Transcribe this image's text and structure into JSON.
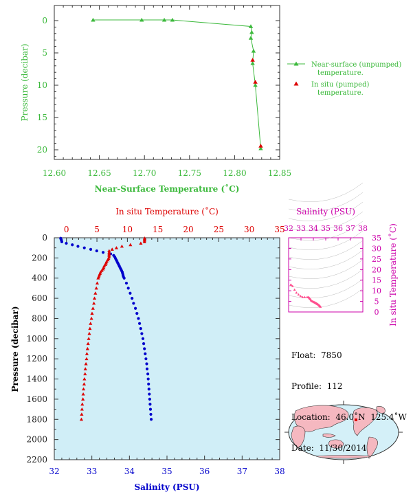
{
  "colors": {
    "green": "#3cb93c",
    "red": "#dd0000",
    "blue": "#0000cc",
    "magenta": "#cc00aa",
    "pink": "#ff4f8f",
    "panel_bg": "#d0eef7",
    "axis_text": "#444444"
  },
  "chart_data": [
    {
      "type": "line",
      "xlabel": "Near-Surface Temperature (˚C)",
      "ylabel": "Pressure (decibar)",
      "xlim": [
        12.6,
        12.85
      ],
      "ylim": [
        0,
        22
      ],
      "y_reversed": true,
      "x_ticks": [
        "12.60",
        "12.65",
        "12.70",
        "12.75",
        "12.80",
        "12.85"
      ],
      "y_ticks": [
        "0",
        "5",
        "10",
        "15",
        "20"
      ],
      "legend_position": "right",
      "series": [
        {
          "name": "Near-surface (unpumped) temperature.",
          "marker": "triangle",
          "points": [
            [
              12.643,
              -0.1
            ],
            [
              12.697,
              -0.1
            ],
            [
              12.722,
              -0.1
            ],
            [
              12.731,
              -0.1
            ],
            [
              12.818,
              0.9
            ],
            [
              12.819,
              1.8
            ],
            [
              12.818,
              2.7
            ],
            [
              12.821,
              4.7
            ],
            [
              12.82,
              6.6
            ],
            [
              12.823,
              10.0
            ],
            [
              12.829,
              19.8
            ]
          ]
        },
        {
          "name": "In situ (pumped) temperature.",
          "marker": "triangle",
          "points": [
            [
              12.82,
              6.1
            ],
            [
              12.823,
              9.5
            ],
            [
              12.829,
              19.4
            ]
          ]
        }
      ]
    },
    {
      "type": "line",
      "top_xlabel": "In situ Temperature (˚C)",
      "bottom_xlabel": "Salinity (PSU)",
      "ylabel": "Pressure (decibar)",
      "temperature_xlim": [
        -2,
        35
      ],
      "salinity_xlim": [
        32,
        38
      ],
      "ylim": [
        0,
        2200
      ],
      "y_reversed": true,
      "temperature_ticks": [
        "0",
        "5",
        "10",
        "15",
        "20",
        "25",
        "30",
        "35"
      ],
      "salinity_ticks": [
        "32",
        "33",
        "34",
        "35",
        "36",
        "37",
        "38"
      ],
      "y_ticks": [
        "0",
        "200",
        "400",
        "600",
        "800",
        "1000",
        "1200",
        "1400",
        "1600",
        "1800",
        "2000",
        "2200"
      ],
      "series": [
        {
          "name": "temperature",
          "marker": "triangle",
          "points": [
            [
              12.83,
              5
            ],
            [
              12.83,
              15
            ],
            [
              12.82,
              25
            ],
            [
              12.81,
              40
            ],
            [
              12.2,
              55
            ],
            [
              10.5,
              70
            ],
            [
              9.1,
              85
            ],
            [
              8.2,
              100
            ],
            [
              7.5,
              115
            ],
            [
              7.0,
              130
            ],
            [
              7.0,
              145
            ],
            [
              7.0,
              160
            ],
            [
              7.0,
              175
            ],
            [
              7.0,
              190
            ],
            [
              6.9,
              205
            ],
            [
              6.8,
              220
            ],
            [
              6.6,
              235
            ],
            [
              6.5,
              250
            ],
            [
              6.4,
              265
            ],
            [
              6.2,
              280
            ],
            [
              6.1,
              295
            ],
            [
              6.0,
              310
            ],
            [
              5.8,
              325
            ],
            [
              5.6,
              340
            ],
            [
              5.5,
              355
            ],
            [
              5.4,
              370
            ],
            [
              5.3,
              385
            ],
            [
              5.2,
              400
            ],
            [
              5.05,
              450
            ],
            [
              4.9,
              500
            ],
            [
              4.75,
              550
            ],
            [
              4.6,
              600
            ],
            [
              4.5,
              650
            ],
            [
              4.35,
              700
            ],
            [
              4.2,
              750
            ],
            [
              4.1,
              800
            ],
            [
              3.95,
              850
            ],
            [
              3.85,
              900
            ],
            [
              3.75,
              950
            ],
            [
              3.65,
              1000
            ],
            [
              3.55,
              1050
            ],
            [
              3.45,
              1100
            ],
            [
              3.35,
              1150
            ],
            [
              3.3,
              1200
            ],
            [
              3.2,
              1250
            ],
            [
              3.1,
              1300
            ],
            [
              3.05,
              1350
            ],
            [
              2.95,
              1400
            ],
            [
              2.9,
              1450
            ],
            [
              2.8,
              1500
            ],
            [
              2.75,
              1550
            ],
            [
              2.7,
              1600
            ],
            [
              2.6,
              1650
            ],
            [
              2.55,
              1700
            ],
            [
              2.5,
              1750
            ],
            [
              2.45,
              1800
            ]
          ]
        },
        {
          "name": "salinity",
          "marker": "circle",
          "points": [
            [
              32.17,
              5
            ],
            [
              32.18,
              15
            ],
            [
              32.19,
              25
            ],
            [
              32.2,
              40
            ],
            [
              32.32,
              55
            ],
            [
              32.48,
              70
            ],
            [
              32.63,
              85
            ],
            [
              32.8,
              100
            ],
            [
              32.97,
              115
            ],
            [
              33.13,
              130
            ],
            [
              33.3,
              145
            ],
            [
              33.5,
              160
            ],
            [
              33.58,
              175
            ],
            [
              33.61,
              190
            ],
            [
              33.63,
              205
            ],
            [
              33.65,
              220
            ],
            [
              33.67,
              235
            ],
            [
              33.69,
              250
            ],
            [
              33.71,
              265
            ],
            [
              33.73,
              280
            ],
            [
              33.75,
              295
            ],
            [
              33.77,
              310
            ],
            [
              33.79,
              325
            ],
            [
              33.81,
              340
            ],
            [
              33.82,
              355
            ],
            [
              33.83,
              370
            ],
            [
              33.84,
              385
            ],
            [
              33.86,
              400
            ],
            [
              33.92,
              450
            ],
            [
              33.97,
              500
            ],
            [
              34.02,
              550
            ],
            [
              34.07,
              600
            ],
            [
              34.11,
              650
            ],
            [
              34.16,
              700
            ],
            [
              34.2,
              750
            ],
            [
              34.24,
              800
            ],
            [
              34.27,
              850
            ],
            [
              34.3,
              900
            ],
            [
              34.33,
              950
            ],
            [
              34.36,
              1000
            ],
            [
              34.38,
              1050
            ],
            [
              34.4,
              1100
            ],
            [
              34.42,
              1150
            ],
            [
              34.44,
              1200
            ],
            [
              34.46,
              1250
            ],
            [
              34.47,
              1300
            ],
            [
              34.49,
              1350
            ],
            [
              34.5,
              1400
            ],
            [
              34.51,
              1450
            ],
            [
              34.52,
              1500
            ],
            [
              34.53,
              1550
            ],
            [
              34.54,
              1600
            ],
            [
              34.55,
              1650
            ],
            [
              34.56,
              1700
            ],
            [
              34.57,
              1750
            ],
            [
              34.58,
              1800
            ]
          ]
        }
      ]
    },
    {
      "type": "scatter",
      "top_xlabel": "Salinity (PSU)",
      "right_ylabel": "In situ Temperature (˚C)",
      "xlim": [
        32,
        38
      ],
      "ylim": [
        0,
        35
      ],
      "x_ticks": [
        "32",
        "33",
        "34",
        "35",
        "36",
        "37",
        "38"
      ],
      "y_ticks": [
        "0",
        "5",
        "10",
        "15",
        "20",
        "25",
        "30",
        "35"
      ],
      "points": [
        [
          32.17,
          12.83
        ],
        [
          32.2,
          12.81
        ],
        [
          32.32,
          12.2
        ],
        [
          32.48,
          10.5
        ],
        [
          32.63,
          9.1
        ],
        [
          32.8,
          8.2
        ],
        [
          32.97,
          7.5
        ],
        [
          33.13,
          7.0
        ],
        [
          33.3,
          7.0
        ],
        [
          33.5,
          7.0
        ],
        [
          33.61,
          7.0
        ],
        [
          33.65,
          6.8
        ],
        [
          33.69,
          6.5
        ],
        [
          33.73,
          6.2
        ],
        [
          33.77,
          6.0
        ],
        [
          33.81,
          5.6
        ],
        [
          33.84,
          5.3
        ],
        [
          33.92,
          5.05
        ],
        [
          33.97,
          4.9
        ],
        [
          34.02,
          4.75
        ],
        [
          34.07,
          4.6
        ],
        [
          34.11,
          4.5
        ],
        [
          34.16,
          4.35
        ],
        [
          34.2,
          4.2
        ],
        [
          34.24,
          4.1
        ],
        [
          34.27,
          3.95
        ],
        [
          34.3,
          3.85
        ],
        [
          34.33,
          3.75
        ],
        [
          34.36,
          3.65
        ],
        [
          34.4,
          3.45
        ],
        [
          34.44,
          3.3
        ],
        [
          34.47,
          3.1
        ],
        [
          34.5,
          2.95
        ],
        [
          34.52,
          2.8
        ],
        [
          34.54,
          2.7
        ],
        [
          34.56,
          2.55
        ],
        [
          34.58,
          2.45
        ]
      ]
    }
  ],
  "float_info": {
    "float": "Float:  7850",
    "profile": "Profile:  112",
    "location": "Location:  46.0˚N  125.4˚W",
    "date": "Date:  11/30/2014"
  },
  "map": {
    "land_color": "#f5b8c0",
    "ocean_color": "#d4f0f8",
    "float_marker_color": "#dd0000"
  }
}
